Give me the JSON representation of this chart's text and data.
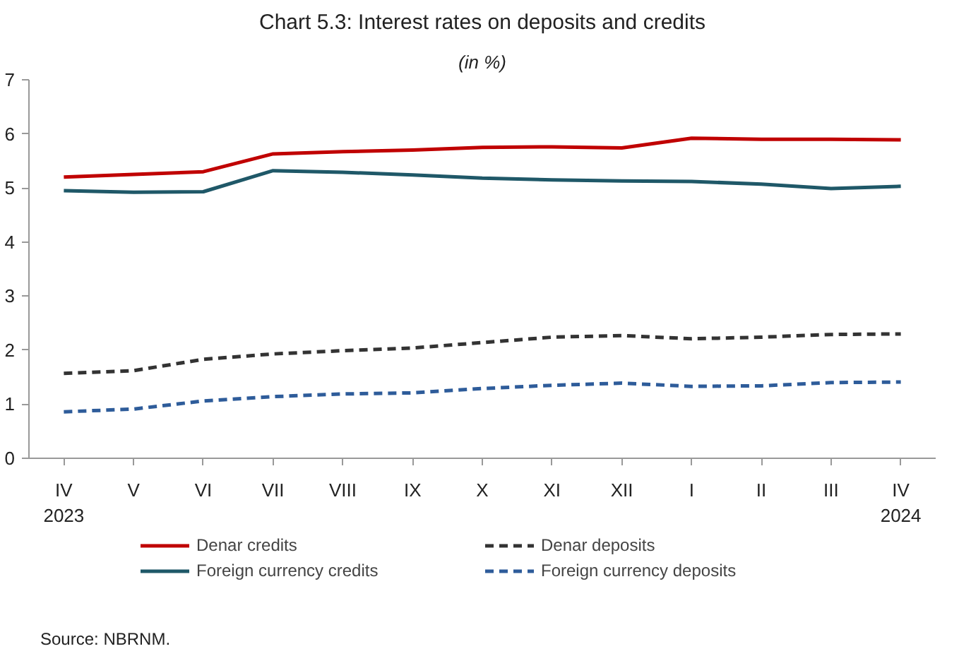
{
  "chart_data": {
    "type": "line",
    "title": "Chart 5.3: Interest rates on deposits and credits",
    "subtitle": "(in %)",
    "categories": [
      "IV\n2023",
      "V",
      "VI",
      "VII",
      "VIII",
      "IX",
      "X",
      "XI",
      "XII",
      "I",
      "II",
      "III",
      "IV\n2024"
    ],
    "series": [
      {
        "name": "Denar credits",
        "color": "#c00000",
        "line_style": "solid",
        "values": [
          5.2,
          5.25,
          5.3,
          5.63,
          5.67,
          5.7,
          5.75,
          5.76,
          5.74,
          5.92,
          5.9,
          5.9,
          5.89
        ]
      },
      {
        "name": "Denar deposits",
        "color": "#333333",
        "line_style": "dashed",
        "values": [
          1.57,
          1.62,
          1.83,
          1.93,
          1.99,
          2.04,
          2.14,
          2.24,
          2.27,
          2.21,
          2.24,
          2.29,
          2.3
        ]
      },
      {
        "name": "Foreign currency credits",
        "color": "#1f5868",
        "line_style": "solid",
        "values": [
          4.95,
          4.92,
          4.93,
          5.32,
          5.29,
          5.24,
          5.18,
          5.15,
          5.13,
          5.12,
          5.07,
          4.99,
          5.03
        ]
      },
      {
        "name": "Foreign currency deposits",
        "color": "#2e5c9a",
        "line_style": "dashed",
        "values": [
          0.86,
          0.91,
          1.06,
          1.14,
          1.19,
          1.21,
          1.29,
          1.35,
          1.39,
          1.33,
          1.34,
          1.4,
          1.41
        ]
      }
    ],
    "ylim": [
      0,
      7
    ],
    "yticks": [
      0,
      1,
      2,
      3,
      4,
      5,
      6,
      7
    ],
    "grid": false,
    "legend": "bottom",
    "marker": "none",
    "annotations": [
      "Source: NBRNM."
    ]
  }
}
